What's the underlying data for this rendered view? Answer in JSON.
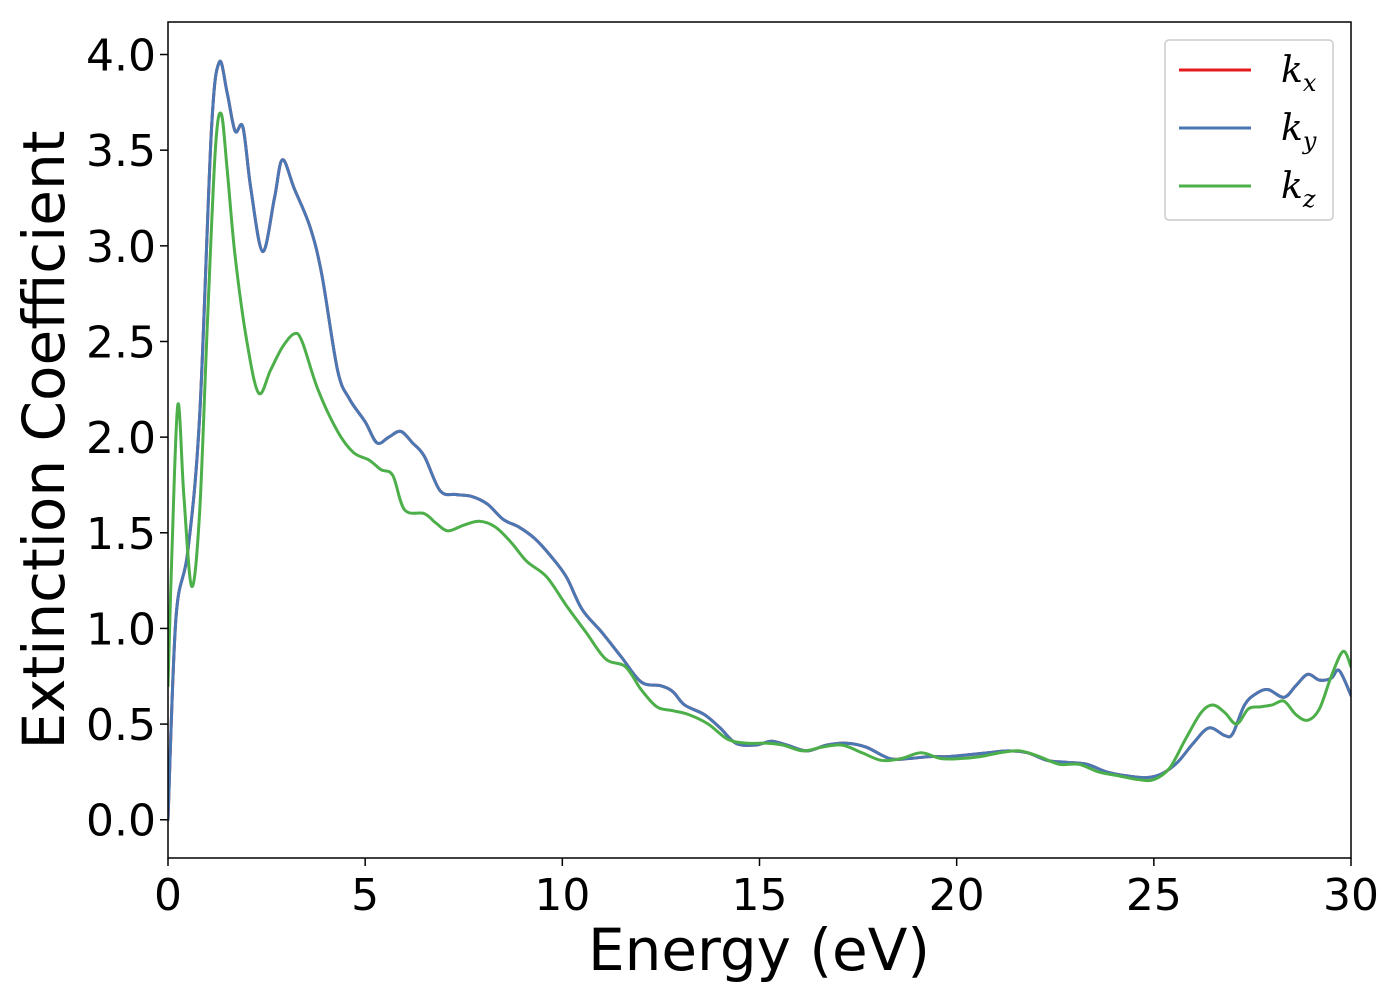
{
  "chart_data": {
    "type": "line",
    "title": "",
    "xlabel": "Energy (eV)",
    "ylabel": "Extinction Coefficient",
    "xlim": [
      0,
      30
    ],
    "ylim": [
      -0.2,
      4.17
    ],
    "grid": false,
    "legend_placement": "top-right",
    "x_ticks": [
      0,
      5,
      10,
      15,
      20,
      25,
      30
    ],
    "x_tick_labels": [
      "0",
      "5",
      "10",
      "15",
      "20",
      "25",
      "30"
    ],
    "y_ticks": [
      0.0,
      0.5,
      1.0,
      1.5,
      2.0,
      2.5,
      3.0,
      3.5,
      4.0
    ],
    "y_tick_labels": [
      "0.0",
      "0.5",
      "1.0",
      "1.5",
      "2.0",
      "2.5",
      "3.0",
      "3.5",
      "4.0"
    ],
    "series": [
      {
        "name": "k",
        "subscript": "x",
        "color": "#e41a1c",
        "points": [
          [
            0,
            0
          ],
          [
            0.2,
            1.05
          ],
          [
            0.5,
            1.4
          ],
          [
            0.8,
            2.1
          ],
          [
            1.1,
            3.6
          ],
          [
            1.3,
            3.96
          ],
          [
            1.5,
            3.8
          ],
          [
            1.7,
            3.6
          ],
          [
            1.9,
            3.62
          ],
          [
            2.1,
            3.3
          ],
          [
            2.4,
            2.97
          ],
          [
            2.7,
            3.25
          ],
          [
            2.9,
            3.45
          ],
          [
            3.2,
            3.3
          ],
          [
            3.6,
            3.1
          ],
          [
            3.9,
            2.85
          ],
          [
            4.3,
            2.35
          ],
          [
            4.6,
            2.2
          ],
          [
            5.0,
            2.08
          ],
          [
            5.3,
            1.97
          ],
          [
            5.6,
            2.0
          ],
          [
            5.9,
            2.03
          ],
          [
            6.2,
            1.97
          ],
          [
            6.5,
            1.9
          ],
          [
            6.9,
            1.72
          ],
          [
            7.3,
            1.7
          ],
          [
            7.7,
            1.69
          ],
          [
            8.1,
            1.65
          ],
          [
            8.5,
            1.57
          ],
          [
            8.9,
            1.53
          ],
          [
            9.3,
            1.47
          ],
          [
            9.7,
            1.38
          ],
          [
            10.1,
            1.27
          ],
          [
            10.5,
            1.1
          ],
          [
            11.0,
            0.98
          ],
          [
            11.5,
            0.85
          ],
          [
            12.0,
            0.72
          ],
          [
            12.5,
            0.7
          ],
          [
            12.8,
            0.67
          ],
          [
            13.1,
            0.6
          ],
          [
            13.6,
            0.55
          ],
          [
            14.0,
            0.48
          ],
          [
            14.4,
            0.4
          ],
          [
            14.9,
            0.39
          ],
          [
            15.3,
            0.41
          ],
          [
            15.7,
            0.39
          ],
          [
            16.2,
            0.36
          ],
          [
            16.7,
            0.39
          ],
          [
            17.2,
            0.4
          ],
          [
            17.7,
            0.38
          ],
          [
            18.3,
            0.32
          ],
          [
            18.8,
            0.32
          ],
          [
            19.3,
            0.33
          ],
          [
            19.8,
            0.33
          ],
          [
            20.3,
            0.34
          ],
          [
            20.8,
            0.35
          ],
          [
            21.3,
            0.36
          ],
          [
            21.8,
            0.35
          ],
          [
            22.3,
            0.31
          ],
          [
            22.8,
            0.3
          ],
          [
            23.3,
            0.29
          ],
          [
            23.8,
            0.25
          ],
          [
            24.3,
            0.23
          ],
          [
            24.8,
            0.22
          ],
          [
            25.2,
            0.24
          ],
          [
            25.6,
            0.3
          ],
          [
            26.0,
            0.4
          ],
          [
            26.4,
            0.48
          ],
          [
            26.8,
            0.44
          ],
          [
            27.0,
            0.45
          ],
          [
            27.3,
            0.6
          ],
          [
            27.6,
            0.66
          ],
          [
            27.9,
            0.68
          ],
          [
            28.3,
            0.64
          ],
          [
            28.6,
            0.7
          ],
          [
            28.9,
            0.76
          ],
          [
            29.2,
            0.73
          ],
          [
            29.5,
            0.74
          ],
          [
            29.7,
            0.78
          ],
          [
            30.0,
            0.65
          ]
        ]
      },
      {
        "name": "k",
        "subscript": "y",
        "color": "#4a78b4",
        "points": [
          [
            0,
            0
          ],
          [
            0.2,
            1.05
          ],
          [
            0.5,
            1.4
          ],
          [
            0.8,
            2.1
          ],
          [
            1.1,
            3.6
          ],
          [
            1.3,
            3.96
          ],
          [
            1.5,
            3.8
          ],
          [
            1.7,
            3.6
          ],
          [
            1.9,
            3.62
          ],
          [
            2.1,
            3.3
          ],
          [
            2.4,
            2.97
          ],
          [
            2.7,
            3.25
          ],
          [
            2.9,
            3.45
          ],
          [
            3.2,
            3.3
          ],
          [
            3.6,
            3.1
          ],
          [
            3.9,
            2.85
          ],
          [
            4.3,
            2.35
          ],
          [
            4.6,
            2.2
          ],
          [
            5.0,
            2.08
          ],
          [
            5.3,
            1.97
          ],
          [
            5.6,
            2.0
          ],
          [
            5.9,
            2.03
          ],
          [
            6.2,
            1.97
          ],
          [
            6.5,
            1.9
          ],
          [
            6.9,
            1.72
          ],
          [
            7.3,
            1.7
          ],
          [
            7.7,
            1.69
          ],
          [
            8.1,
            1.65
          ],
          [
            8.5,
            1.57
          ],
          [
            8.9,
            1.53
          ],
          [
            9.3,
            1.47
          ],
          [
            9.7,
            1.38
          ],
          [
            10.1,
            1.27
          ],
          [
            10.5,
            1.1
          ],
          [
            11.0,
            0.98
          ],
          [
            11.5,
            0.85
          ],
          [
            12.0,
            0.72
          ],
          [
            12.5,
            0.7
          ],
          [
            12.8,
            0.67
          ],
          [
            13.1,
            0.6
          ],
          [
            13.6,
            0.55
          ],
          [
            14.0,
            0.48
          ],
          [
            14.4,
            0.4
          ],
          [
            14.9,
            0.39
          ],
          [
            15.3,
            0.41
          ],
          [
            15.7,
            0.39
          ],
          [
            16.2,
            0.36
          ],
          [
            16.7,
            0.39
          ],
          [
            17.2,
            0.4
          ],
          [
            17.7,
            0.38
          ],
          [
            18.3,
            0.32
          ],
          [
            18.8,
            0.32
          ],
          [
            19.3,
            0.33
          ],
          [
            19.8,
            0.33
          ],
          [
            20.3,
            0.34
          ],
          [
            20.8,
            0.35
          ],
          [
            21.3,
            0.36
          ],
          [
            21.8,
            0.35
          ],
          [
            22.3,
            0.31
          ],
          [
            22.8,
            0.3
          ],
          [
            23.3,
            0.29
          ],
          [
            23.8,
            0.25
          ],
          [
            24.3,
            0.23
          ],
          [
            24.8,
            0.22
          ],
          [
            25.2,
            0.24
          ],
          [
            25.6,
            0.3
          ],
          [
            26.0,
            0.4
          ],
          [
            26.4,
            0.48
          ],
          [
            26.8,
            0.44
          ],
          [
            27.0,
            0.45
          ],
          [
            27.3,
            0.6
          ],
          [
            27.6,
            0.66
          ],
          [
            27.9,
            0.68
          ],
          [
            28.3,
            0.64
          ],
          [
            28.6,
            0.7
          ],
          [
            28.9,
            0.76
          ],
          [
            29.2,
            0.73
          ],
          [
            29.5,
            0.74
          ],
          [
            29.7,
            0.78
          ],
          [
            30.0,
            0.65
          ]
        ]
      },
      {
        "name": "k",
        "subscript": "z",
        "color": "#4daf4a",
        "points": [
          [
            0,
            0.7
          ],
          [
            0.1,
            1.4
          ],
          [
            0.25,
            2.17
          ],
          [
            0.4,
            1.7
          ],
          [
            0.6,
            1.22
          ],
          [
            0.8,
            1.6
          ],
          [
            1.0,
            2.6
          ],
          [
            1.2,
            3.5
          ],
          [
            1.35,
            3.69
          ],
          [
            1.5,
            3.4
          ],
          [
            1.7,
            2.95
          ],
          [
            2.0,
            2.5
          ],
          [
            2.3,
            2.23
          ],
          [
            2.6,
            2.35
          ],
          [
            2.9,
            2.47
          ],
          [
            3.2,
            2.54
          ],
          [
            3.4,
            2.5
          ],
          [
            3.8,
            2.25
          ],
          [
            4.3,
            2.03
          ],
          [
            4.7,
            1.92
          ],
          [
            5.1,
            1.88
          ],
          [
            5.4,
            1.83
          ],
          [
            5.7,
            1.8
          ],
          [
            6.0,
            1.62
          ],
          [
            6.5,
            1.6
          ],
          [
            6.8,
            1.55
          ],
          [
            7.1,
            1.51
          ],
          [
            7.5,
            1.54
          ],
          [
            7.9,
            1.56
          ],
          [
            8.3,
            1.53
          ],
          [
            8.7,
            1.45
          ],
          [
            9.1,
            1.35
          ],
          [
            9.6,
            1.27
          ],
          [
            10.1,
            1.12
          ],
          [
            10.6,
            0.98
          ],
          [
            11.1,
            0.84
          ],
          [
            11.6,
            0.8
          ],
          [
            12.0,
            0.68
          ],
          [
            12.4,
            0.59
          ],
          [
            12.8,
            0.57
          ],
          [
            13.2,
            0.55
          ],
          [
            13.7,
            0.5
          ],
          [
            14.2,
            0.42
          ],
          [
            14.7,
            0.4
          ],
          [
            15.2,
            0.4
          ],
          [
            15.6,
            0.39
          ],
          [
            16.1,
            0.36
          ],
          [
            16.6,
            0.38
          ],
          [
            17.1,
            0.39
          ],
          [
            17.6,
            0.35
          ],
          [
            18.1,
            0.31
          ],
          [
            18.6,
            0.32
          ],
          [
            19.1,
            0.35
          ],
          [
            19.6,
            0.32
          ],
          [
            20.1,
            0.32
          ],
          [
            20.6,
            0.33
          ],
          [
            21.1,
            0.35
          ],
          [
            21.6,
            0.36
          ],
          [
            22.1,
            0.33
          ],
          [
            22.6,
            0.29
          ],
          [
            23.1,
            0.29
          ],
          [
            23.6,
            0.25
          ],
          [
            24.1,
            0.23
          ],
          [
            24.6,
            0.21
          ],
          [
            25.0,
            0.21
          ],
          [
            25.4,
            0.27
          ],
          [
            25.8,
            0.42
          ],
          [
            26.2,
            0.56
          ],
          [
            26.5,
            0.6
          ],
          [
            26.8,
            0.56
          ],
          [
            27.1,
            0.5
          ],
          [
            27.4,
            0.58
          ],
          [
            27.7,
            0.59
          ],
          [
            28.0,
            0.6
          ],
          [
            28.3,
            0.62
          ],
          [
            28.6,
            0.55
          ],
          [
            28.9,
            0.52
          ],
          [
            29.2,
            0.58
          ],
          [
            29.5,
            0.75
          ],
          [
            29.8,
            0.88
          ],
          [
            30.0,
            0.8
          ]
        ]
      }
    ]
  }
}
